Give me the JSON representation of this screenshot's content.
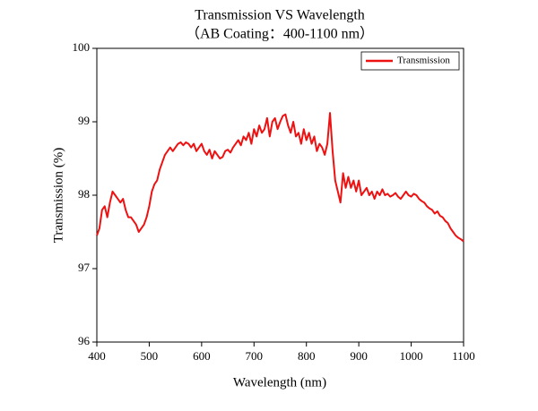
{
  "chart_data": {
    "type": "line",
    "title": "Transmission VS Wavelength",
    "subtitle": "（AB Coating：400-1100 nm）",
    "x_label": "Wavelength (nm)",
    "y_label": "Transmission (%)",
    "xlim": [
      400,
      1100
    ],
    "xticks": [
      400,
      500,
      600,
      700,
      800,
      900,
      1000,
      1100
    ],
    "ylim": [
      96,
      100
    ],
    "yticks": [
      96,
      97,
      98,
      99,
      100
    ],
    "grid": false,
    "legend": "upper right",
    "x": [
      400,
      405,
      410,
      415,
      420,
      425,
      430,
      435,
      440,
      445,
      450,
      455,
      460,
      465,
      470,
      475,
      480,
      485,
      490,
      495,
      500,
      505,
      510,
      515,
      520,
      525,
      530,
      535,
      540,
      545,
      550,
      555,
      560,
      565,
      570,
      575,
      580,
      585,
      590,
      595,
      600,
      605,
      610,
      615,
      620,
      625,
      630,
      635,
      640,
      645,
      650,
      655,
      660,
      665,
      670,
      675,
      680,
      685,
      690,
      695,
      700,
      705,
      710,
      715,
      720,
      725,
      730,
      735,
      740,
      745,
      750,
      755,
      760,
      765,
      770,
      775,
      780,
      785,
      790,
      795,
      800,
      805,
      810,
      815,
      820,
      825,
      830,
      835,
      840,
      845,
      850,
      855,
      860,
      865,
      870,
      875,
      880,
      885,
      890,
      895,
      900,
      905,
      910,
      915,
      920,
      925,
      930,
      935,
      940,
      945,
      950,
      955,
      960,
      965,
      970,
      975,
      980,
      985,
      990,
      995,
      1000,
      1005,
      1010,
      1015,
      1020,
      1025,
      1030,
      1035,
      1040,
      1045,
      1050,
      1055,
      1060,
      1065,
      1070,
      1075,
      1080,
      1085,
      1090,
      1095,
      1100
    ],
    "series": [
      {
        "name": "Transmission",
        "color": "#ee1111",
        "values": [
          97.45,
          97.55,
          97.8,
          97.85,
          97.7,
          97.9,
          98.05,
          98.0,
          97.95,
          97.9,
          97.95,
          97.8,
          97.7,
          97.7,
          97.65,
          97.6,
          97.5,
          97.55,
          97.6,
          97.7,
          97.85,
          98.05,
          98.15,
          98.2,
          98.35,
          98.45,
          98.55,
          98.6,
          98.65,
          98.6,
          98.65,
          98.7,
          98.72,
          98.68,
          98.72,
          98.7,
          98.65,
          98.7,
          98.6,
          98.65,
          98.7,
          98.6,
          98.55,
          98.62,
          98.5,
          98.6,
          98.55,
          98.5,
          98.52,
          98.6,
          98.62,
          98.58,
          98.65,
          98.7,
          98.75,
          98.68,
          98.8,
          98.75,
          98.85,
          98.7,
          98.9,
          98.8,
          98.95,
          98.85,
          98.9,
          99.05,
          98.8,
          99.0,
          99.05,
          98.9,
          99.0,
          99.08,
          99.1,
          98.95,
          98.85,
          99.0,
          98.8,
          98.85,
          98.7,
          98.9,
          98.75,
          98.85,
          98.7,
          98.8,
          98.6,
          98.7,
          98.65,
          98.55,
          98.7,
          99.12,
          98.6,
          98.2,
          98.05,
          97.9,
          98.3,
          98.1,
          98.25,
          98.1,
          98.2,
          98.05,
          98.2,
          98.0,
          98.05,
          98.1,
          98.0,
          98.05,
          97.95,
          98.05,
          98.0,
          98.08,
          98.0,
          98.02,
          97.98,
          98.0,
          98.03,
          97.98,
          97.95,
          98.0,
          98.05,
          98.0,
          97.98,
          98.02,
          98.0,
          97.95,
          97.92,
          97.9,
          97.85,
          97.82,
          97.8,
          97.75,
          97.78,
          97.72,
          97.7,
          97.65,
          97.62,
          97.55,
          97.5,
          97.45,
          97.42,
          97.4,
          97.37
        ]
      }
    ]
  }
}
